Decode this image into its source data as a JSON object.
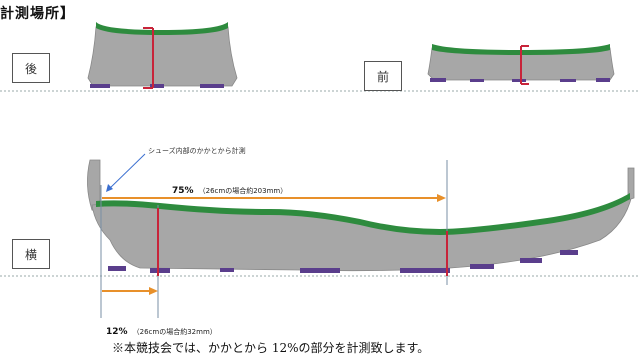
{
  "title": "計測場所】",
  "labels": {
    "back": "後",
    "front": "前",
    "side": "横"
  },
  "annotation": "シューズ内部のかかとから計測",
  "measure_75": {
    "percent": "75%",
    "note": "（26cmの場合約203mm）"
  },
  "measure_12": {
    "percent": "12%",
    "note": "（26cmの場合約32mm）"
  },
  "footer": "※本競技会では、かかとから 12%の部分を計測致します。",
  "colors": {
    "sole": "#a7a7a7",
    "insole": "#2e8b3e",
    "marker": "#c8243a",
    "outsole": "#5a3e8c",
    "arrow": "#e8902a",
    "guide": "#7a8fa5"
  }
}
